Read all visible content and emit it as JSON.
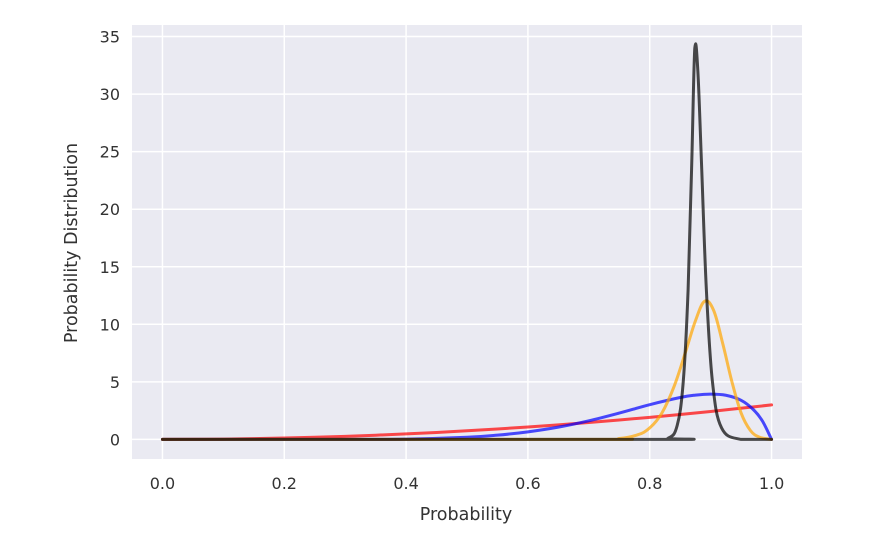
{
  "chart_data": {
    "type": "line",
    "title": "",
    "xlabel": "Probability",
    "ylabel": "Probability Distribution",
    "xlim": [
      -0.05,
      1.05
    ],
    "ylim": [
      -1.7,
      36
    ],
    "xticks": [
      0.0,
      0.2,
      0.4,
      0.6,
      0.8,
      1.0
    ],
    "xtick_labels": [
      "0.0",
      "0.2",
      "0.4",
      "0.6",
      "0.8",
      "1.0"
    ],
    "yticks": [
      0,
      5,
      10,
      15,
      20,
      25,
      30,
      35
    ],
    "ytick_labels": [
      "0",
      "5",
      "10",
      "15",
      "20",
      "25",
      "30",
      "35"
    ],
    "grid": true,
    "legend": "none",
    "background_color": "#eaeaf2",
    "series": [
      {
        "color": "#ff0000",
        "opacity": 0.7,
        "x": [
          0.0,
          0.1,
          0.2,
          0.3,
          0.4,
          0.5,
          0.6,
          0.7,
          0.8,
          0.9,
          1.0
        ],
        "y": [
          0.0,
          0.03,
          0.12,
          0.27,
          0.48,
          0.75,
          1.08,
          1.47,
          1.92,
          2.43,
          3.0
        ]
      },
      {
        "color": "#0000ff",
        "opacity": 0.7,
        "x": [
          0.0,
          0.3,
          0.4,
          0.5,
          0.55,
          0.6,
          0.65,
          0.7,
          0.75,
          0.8,
          0.85,
          0.875,
          0.9,
          0.925,
          0.95,
          0.97,
          0.985,
          1.0
        ],
        "y": [
          0.0,
          0.0,
          0.03,
          0.19,
          0.37,
          0.66,
          1.07,
          1.62,
          2.29,
          3.02,
          3.64,
          3.85,
          3.94,
          3.84,
          3.4,
          2.6,
          1.6,
          0.0
        ]
      },
      {
        "color": "#ffa500",
        "opacity": 0.7,
        "x": [
          0.0,
          0.7,
          0.75,
          0.78,
          0.8,
          0.82,
          0.84,
          0.86,
          0.875,
          0.89,
          0.905,
          0.92,
          0.935,
          0.95,
          0.965,
          0.98,
          1.0
        ],
        "y": [
          0.0,
          0.0,
          0.08,
          0.4,
          1.0,
          2.3,
          4.6,
          7.8,
          10.3,
          12.0,
          11.2,
          8.3,
          5.0,
          2.3,
          0.8,
          0.2,
          0.0
        ]
      },
      {
        "color": "#000000",
        "opacity": 0.7,
        "x": [
          0.0,
          0.8,
          0.83,
          0.845,
          0.855,
          0.863,
          0.869,
          0.874,
          0.879,
          0.885,
          0.893,
          0.903,
          0.918,
          0.95,
          1.0
        ],
        "y": [
          0.0,
          0.0,
          0.1,
          1.2,
          5.0,
          13.0,
          24.0,
          34.0,
          32.0,
          24.0,
          13.0,
          5.0,
          1.0,
          0.0,
          0.0
        ]
      }
    ]
  }
}
